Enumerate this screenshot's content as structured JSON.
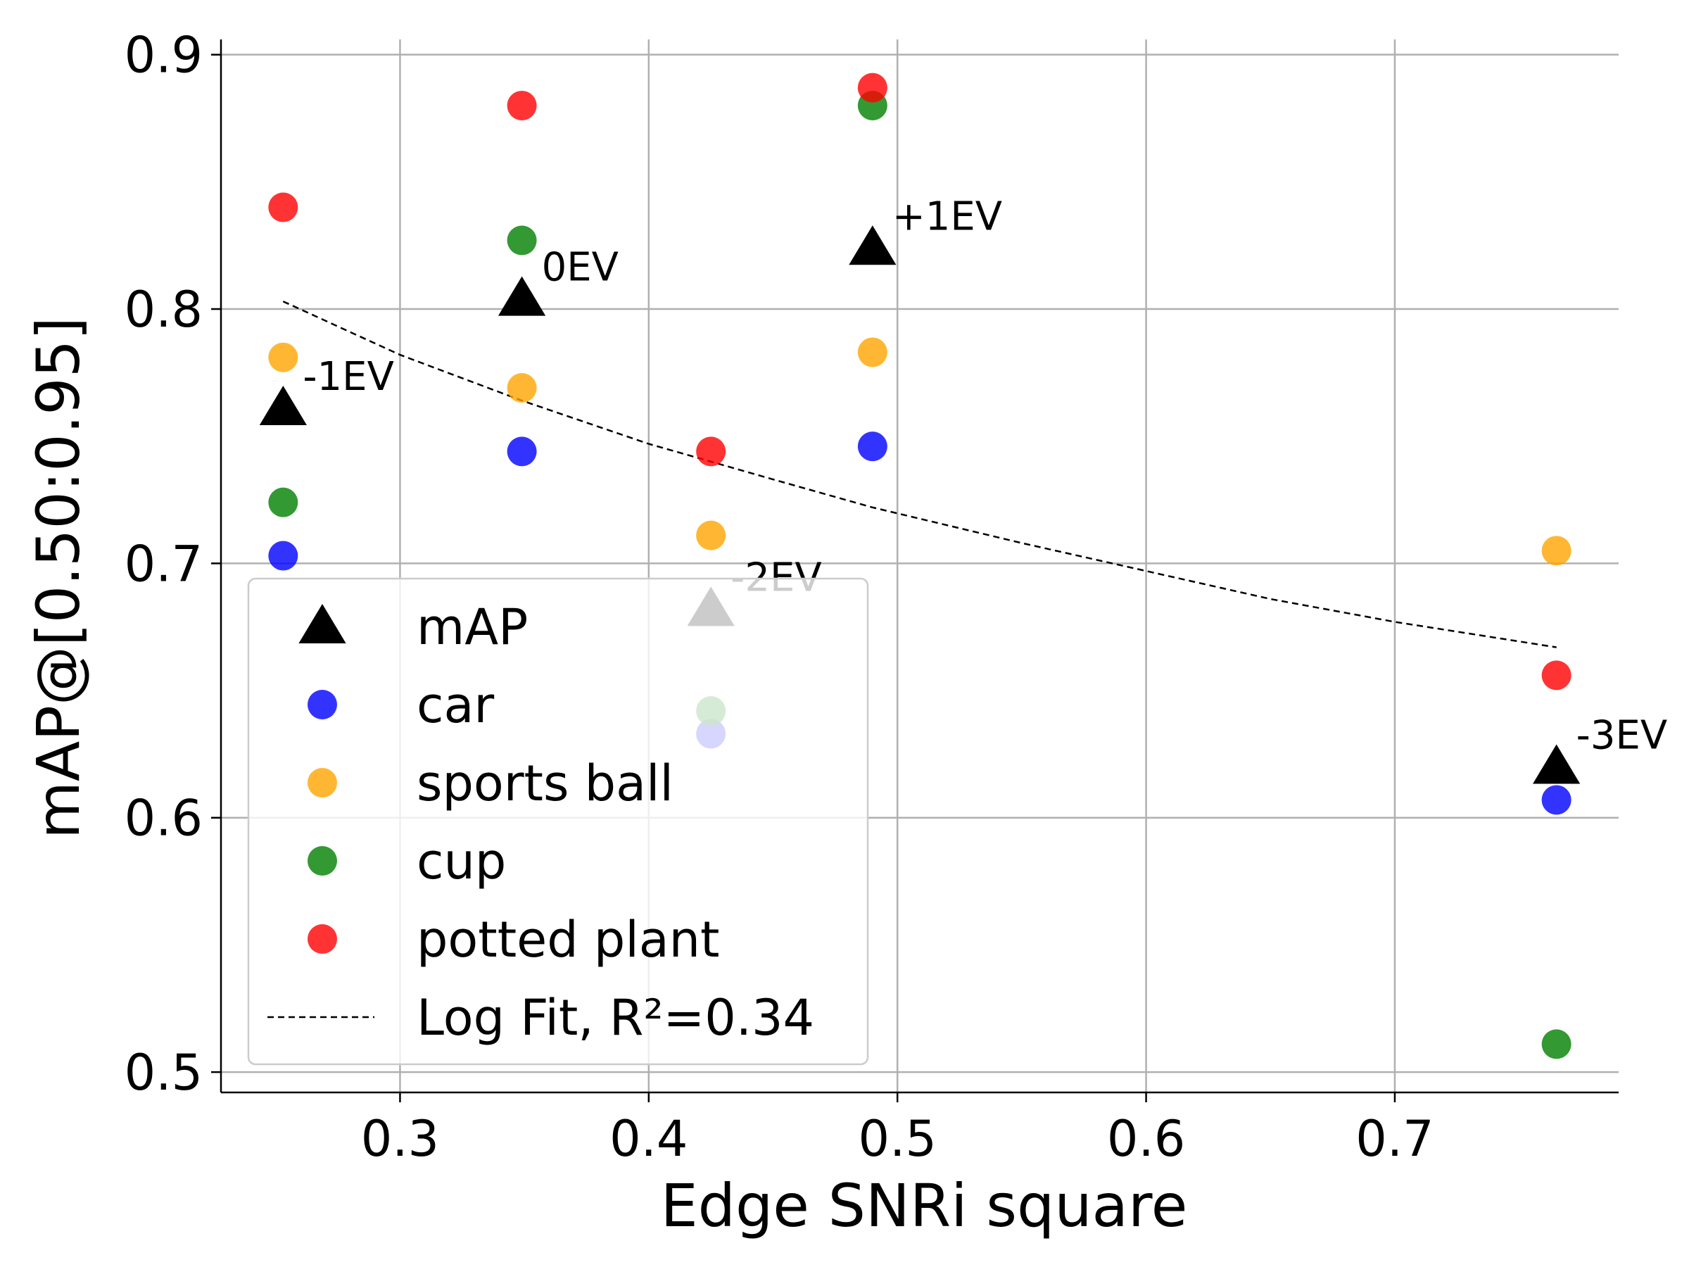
{
  "chart_data": {
    "type": "scatter",
    "xlabel": "Edge SNRi square",
    "ylabel": "mAP@[0.50:0.95]",
    "xlim": [
      0.228,
      0.79
    ],
    "ylim": [
      0.492,
      0.906
    ],
    "xticks": [
      0.3,
      0.4,
      0.5,
      0.6,
      0.7
    ],
    "xtick_labels": [
      "0.3",
      "0.4",
      "0.5",
      "0.6",
      "0.7"
    ],
    "yticks": [
      0.5,
      0.6,
      0.7,
      0.8,
      0.9
    ],
    "ytick_labels": [
      "0.5",
      "0.6",
      "0.7",
      "0.8",
      "0.9"
    ],
    "grid": true,
    "legend_position": "lower-left",
    "series": [
      {
        "name": "car",
        "color": "#0000ff",
        "marker": "circle",
        "x": [
          0.253,
          0.349,
          0.425,
          0.49,
          0.765
        ],
        "y": [
          0.703,
          0.744,
          0.633,
          0.746,
          0.607
        ]
      },
      {
        "name": "sports ball",
        "color": "#ffa500",
        "marker": "circle",
        "x": [
          0.253,
          0.349,
          0.425,
          0.49,
          0.765
        ],
        "y": [
          0.781,
          0.769,
          0.711,
          0.783,
          0.705
        ]
      },
      {
        "name": "cup",
        "color": "#008000",
        "marker": "circle",
        "x": [
          0.253,
          0.349,
          0.425,
          0.49,
          0.765
        ],
        "y": [
          0.724,
          0.827,
          0.642,
          0.88,
          0.511
        ]
      },
      {
        "name": "potted plant",
        "color": "#ff0000",
        "marker": "circle",
        "x": [
          0.253,
          0.349,
          0.425,
          0.49,
          0.765
        ],
        "y": [
          0.84,
          0.88,
          0.744,
          0.887,
          0.656
        ]
      },
      {
        "name": "mAP",
        "color": "#000000",
        "marker": "triangle",
        "x": [
          0.253,
          0.349,
          0.425,
          0.49,
          0.765
        ],
        "y": [
          0.761,
          0.804,
          0.682,
          0.824,
          0.62
        ],
        "labels": [
          "-1EV",
          "0EV",
          "-2EV",
          "+1EV",
          "-3EV"
        ]
      }
    ],
    "fit": {
      "name": "Log Fit, R²=0.34",
      "color": "#000000",
      "style": "dashed",
      "x": [
        0.253,
        0.3,
        0.349,
        0.4,
        0.425,
        0.45,
        0.49,
        0.55,
        0.6,
        0.65,
        0.7,
        0.765
      ],
      "y": [
        0.803,
        0.782,
        0.764,
        0.747,
        0.74,
        0.733,
        0.722,
        0.708,
        0.697,
        0.686,
        0.677,
        0.667
      ]
    },
    "legend": [
      {
        "label": "mAP",
        "marker": "triangle",
        "color": "#000000"
      },
      {
        "label": "car",
        "marker": "circle",
        "color": "#0000ff"
      },
      {
        "label": "sports ball",
        "marker": "circle",
        "color": "#ffa500"
      },
      {
        "label": "cup",
        "marker": "circle",
        "color": "#008000"
      },
      {
        "label": "potted plant",
        "marker": "circle",
        "color": "#ff0000"
      },
      {
        "label": "Log Fit, R²=0.34",
        "marker": "dashed-line",
        "color": "#000000"
      }
    ]
  }
}
